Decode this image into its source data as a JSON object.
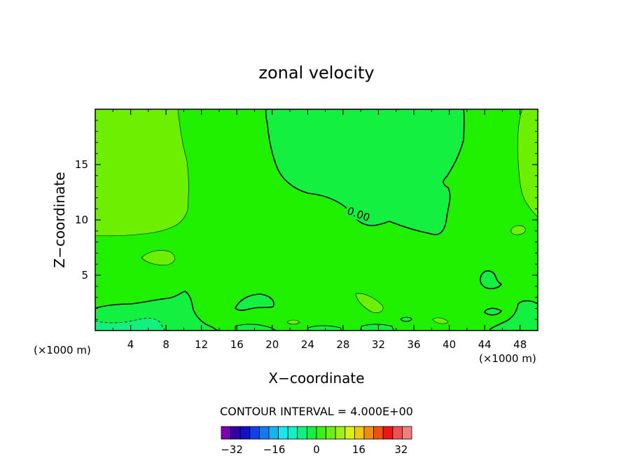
{
  "chart_data": {
    "type": "contour",
    "title": "zonal velocity",
    "xlabel": "X−coordinate",
    "ylabel": "Z−coordinate",
    "x_unit_left": "(×1000 m)",
    "x_unit_right": "(×1000 m)",
    "xlim": [
      0,
      50
    ],
    "ylim": [
      0,
      20
    ],
    "xticks": [
      4,
      8,
      12,
      16,
      20,
      24,
      28,
      32,
      36,
      40,
      44,
      48
    ],
    "yticks": [
      5,
      10,
      15
    ],
    "contour_label": "0.00",
    "contour_interval_text": "CONTOUR INTERVAL = 4.000E+00",
    "colorbar": {
      "min": -36,
      "max": 36,
      "step": 4,
      "tick_labels": [
        "−32",
        "−16",
        "0",
        "16",
        "32"
      ],
      "tick_values": [
        -32,
        -16,
        0,
        16,
        32
      ],
      "colors": [
        "#7a00b0",
        "#3000a8",
        "#1010c8",
        "#1040f0",
        "#1478f0",
        "#14b4f0",
        "#14e8f0",
        "#14f0c0",
        "#14f080",
        "#14f040",
        "#3cf014",
        "#6cf014",
        "#a0f014",
        "#d8f014",
        "#f0c814",
        "#f08c14",
        "#f05014",
        "#f01414",
        "#f05050",
        "#f08080"
      ]
    },
    "regions": {
      "background_level": "0 to 4",
      "positive_level": "4 to 8",
      "negative_level": "-4 to 0",
      "lower_negative_level": "-8 to -4"
    }
  }
}
